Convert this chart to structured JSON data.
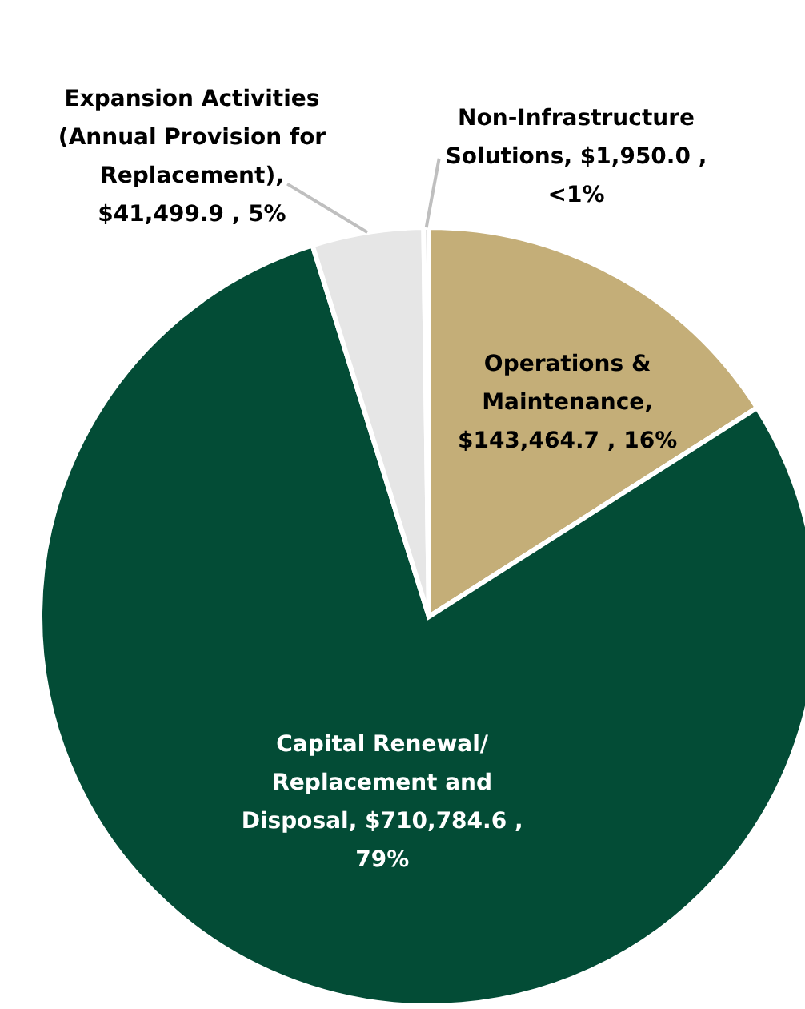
{
  "chart_data": {
    "type": "pie",
    "categories": [
      "Operations & Maintenance",
      "Capital Renewal/Replacement and Disposal",
      "Expansion Activities (Annual Provision for Replacement)",
      "Non-Infrastructure Solutions"
    ],
    "values": [
      143464.7,
      710784.6,
      41499.9,
      1950.0
    ],
    "colors": [
      "#c4ae78",
      "#034c36",
      "#e6e6e6",
      "#d0d0d0"
    ],
    "value_labels": [
      ", $143,464.7 , 16%",
      ", $710,784.6 , 79%",
      ", $41,499.9 , 5%",
      ", $1,950.0 , <1%"
    ]
  }
}
